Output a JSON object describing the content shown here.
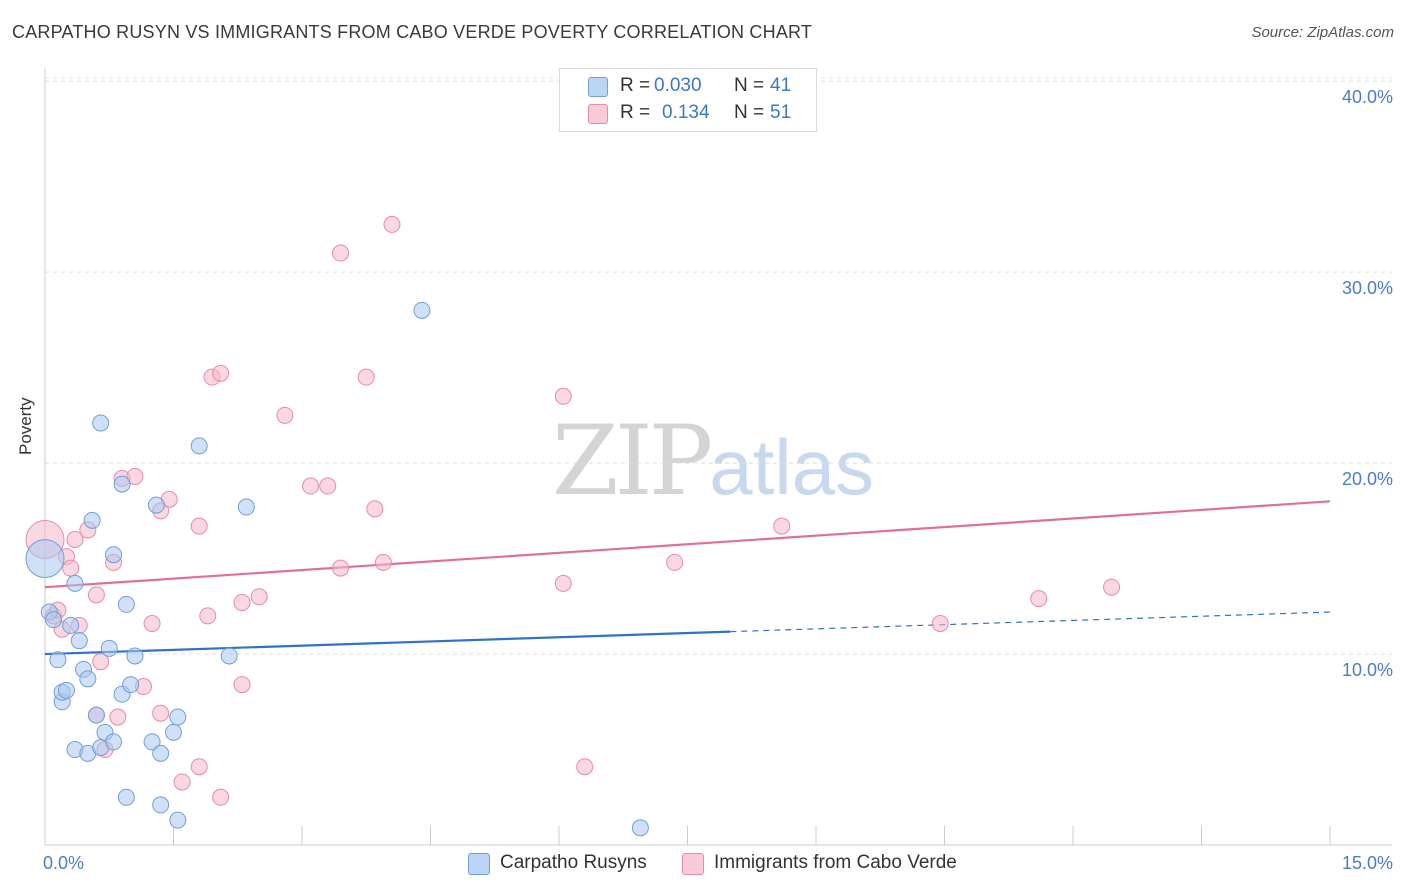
{
  "title": "CARPATHO RUSYN VS IMMIGRANTS FROM CABO VERDE POVERTY CORRELATION CHART",
  "source": "Source: ZipAtlas.com",
  "watermark": {
    "zip": "ZIP",
    "atlas": "atlas"
  },
  "legend": {
    "rows": [
      {
        "r_label": "R =",
        "r_value": "0.030",
        "n_label": "N =",
        "n_value": "41",
        "color": "#a9c8f0"
      },
      {
        "r_label": "R =",
        "r_value": "0.134",
        "n_label": "N =",
        "n_value": "51",
        "color": "#f5b8cb"
      }
    ]
  },
  "chart_data": {
    "type": "scatter",
    "title": "CARPATHO RUSYN VS IMMIGRANTS FROM CABO VERDE POVERTY CORRELATION CHART",
    "xlabel": "",
    "ylabel": "Poverty",
    "xlim": [
      0,
      15
    ],
    "ylim": [
      0,
      42
    ],
    "x_tick_labels": [
      {
        "value": 0,
        "label": "0.0%"
      },
      {
        "value": 15,
        "label": "15.0%"
      }
    ],
    "y_tick_labels": [
      {
        "value": 10,
        "label": "10.0%"
      },
      {
        "value": 20,
        "label": "20.0%"
      },
      {
        "value": 30,
        "label": "30.0%"
      },
      {
        "value": 40,
        "label": "40.0%"
      }
    ],
    "x_minor_ticks": [
      0,
      1.5,
      3,
      4.5,
      6,
      7.5,
      9,
      10.5,
      12,
      13.5,
      15
    ],
    "grid": true,
    "legend_position": "top-center",
    "series": [
      {
        "name": "Carpatho Rusyns",
        "color": "#a9c8f0",
        "stroke": "#6f9fd8",
        "line_color": "#2f72c8",
        "trend": {
          "x0": 0,
          "y0": 10.0,
          "x_solid_end": 8.0,
          "x1": 15,
          "y1": 12.2
        },
        "points": [
          [
            0.0,
            15.0,
            "large"
          ],
          [
            0.05,
            12.2
          ],
          [
            0.1,
            11.8
          ],
          [
            0.15,
            9.7
          ],
          [
            0.2,
            7.5
          ],
          [
            0.2,
            8.0
          ],
          [
            0.25,
            8.1
          ],
          [
            0.3,
            11.5
          ],
          [
            0.35,
            13.7
          ],
          [
            0.35,
            5.0
          ],
          [
            0.4,
            10.7
          ],
          [
            0.45,
            9.2
          ],
          [
            0.5,
            8.7
          ],
          [
            0.5,
            4.8
          ],
          [
            0.55,
            17.0
          ],
          [
            0.6,
            6.8
          ],
          [
            0.65,
            5.1
          ],
          [
            0.65,
            22.1
          ],
          [
            0.7,
            5.9
          ],
          [
            0.75,
            10.3
          ],
          [
            0.8,
            5.4
          ],
          [
            0.8,
            15.2
          ],
          [
            0.9,
            18.9
          ],
          [
            0.9,
            7.9
          ],
          [
            0.95,
            12.6
          ],
          [
            0.95,
            2.5
          ],
          [
            1.0,
            8.4
          ],
          [
            1.05,
            9.9
          ],
          [
            1.25,
            5.4
          ],
          [
            1.3,
            17.8
          ],
          [
            1.35,
            4.8
          ],
          [
            1.35,
            2.1
          ],
          [
            1.5,
            5.9
          ],
          [
            1.55,
            1.3
          ],
          [
            1.55,
            6.7
          ],
          [
            1.8,
            20.9
          ],
          [
            2.15,
            9.9
          ],
          [
            2.35,
            17.7
          ],
          [
            4.4,
            28.0
          ],
          [
            6.95,
            0.9
          ]
        ]
      },
      {
        "name": "Immigrants from Cabo Verde",
        "color": "#f5b8cb",
        "stroke": "#e88aa8",
        "line_color": "#e07098",
        "trend": {
          "x0": 0,
          "y0": 13.5,
          "x1": 15,
          "y1": 18.0
        },
        "points": [
          [
            0.0,
            16.0,
            "large"
          ],
          [
            0.1,
            12.0
          ],
          [
            0.15,
            12.3
          ],
          [
            0.2,
            11.3
          ],
          [
            0.25,
            15.1
          ],
          [
            0.3,
            14.5
          ],
          [
            0.35,
            16.0
          ],
          [
            0.4,
            11.5
          ],
          [
            0.5,
            16.5
          ],
          [
            0.6,
            6.8
          ],
          [
            0.6,
            13.1
          ],
          [
            0.65,
            9.6
          ],
          [
            0.7,
            5.0
          ],
          [
            0.8,
            14.8
          ],
          [
            0.85,
            6.7
          ],
          [
            0.9,
            19.2
          ],
          [
            1.05,
            19.3
          ],
          [
            1.15,
            8.3
          ],
          [
            1.25,
            11.6
          ],
          [
            1.35,
            17.5
          ],
          [
            1.35,
            6.9
          ],
          [
            1.45,
            18.1
          ],
          [
            1.6,
            3.3
          ],
          [
            1.8,
            4.1
          ],
          [
            1.8,
            16.7
          ],
          [
            1.9,
            12.0
          ],
          [
            1.95,
            24.5
          ],
          [
            2.05,
            24.7
          ],
          [
            2.05,
            2.5
          ],
          [
            2.3,
            8.4
          ],
          [
            2.3,
            12.7
          ],
          [
            2.5,
            13.0
          ],
          [
            2.8,
            22.5
          ],
          [
            3.1,
            18.8
          ],
          [
            3.3,
            18.8
          ],
          [
            3.45,
            14.5
          ],
          [
            3.45,
            31.0
          ],
          [
            3.75,
            24.5
          ],
          [
            3.85,
            17.6
          ],
          [
            3.95,
            14.8
          ],
          [
            4.05,
            32.5
          ],
          [
            6.05,
            23.5
          ],
          [
            6.05,
            13.7
          ],
          [
            6.3,
            4.1
          ],
          [
            7.35,
            14.8
          ],
          [
            8.6,
            16.7
          ],
          [
            10.45,
            11.6
          ],
          [
            11.6,
            12.9
          ],
          [
            12.45,
            13.5
          ]
        ]
      }
    ]
  }
}
